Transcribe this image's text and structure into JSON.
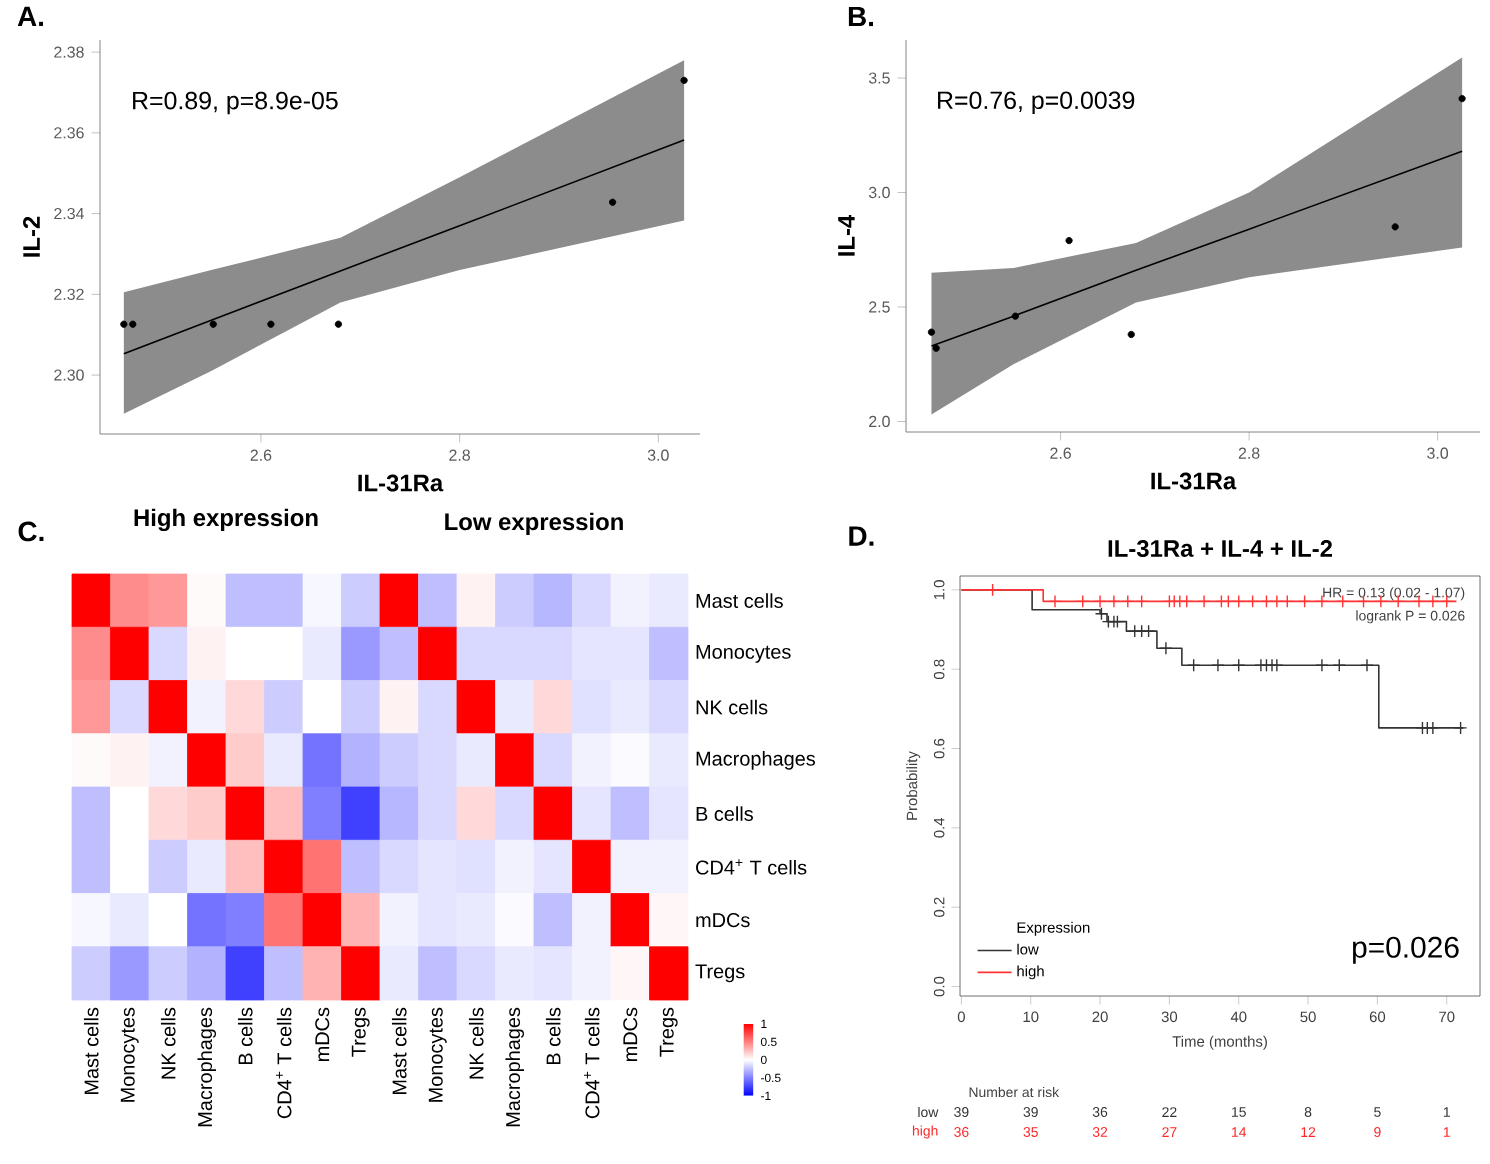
{
  "chart_data": [
    {
      "type": "scatter",
      "annotations": [
        "A.",
        "R=0.89, p=8.9e-05"
      ],
      "xlabel": "IL-31Ra",
      "ylabel": "IL-2",
      "xlim": [
        2.438,
        3.042
      ],
      "ylim": [
        2.2854,
        2.383
      ],
      "xticks": [
        2.6,
        2.8,
        {
          "value": 3.0,
          "label": "3.0"
        }
      ],
      "yticks": [
        {
          "value": 2.3,
          "label": "2.30"
        },
        {
          "value": 2.32,
          "label": "2.32"
        },
        {
          "value": 2.34,
          "label": "2.34"
        },
        {
          "value": 2.36,
          "label": "2.36"
        },
        {
          "value": 2.38,
          "label": "2.38"
        }
      ],
      "series": [
        {
          "type": "line",
          "color": "#000000",
          "x": [
            2.462,
            2.55,
            2.68,
            2.8,
            3.026
          ],
          "values": [
            2.3053,
            2.3136,
            2.3258,
            2.337,
            2.3582
          ],
          "lower": [
            2.2904,
            2.301,
            2.318,
            2.326,
            2.3383
          ],
          "upper": [
            2.3205,
            2.326,
            2.334,
            2.349,
            2.378
          ]
        },
        {
          "type": "scatter",
          "marker": "circle",
          "color": "#000000",
          "x": [
            2.462,
            2.471,
            2.552,
            2.61,
            2.678,
            2.954,
            3.026
          ],
          "values": [
            2.3126,
            2.3126,
            2.3126,
            2.3126,
            2.3126,
            2.3428,
            2.373
          ]
        }
      ]
    },
    {
      "type": "scatter",
      "annotations": [
        "B.",
        "R=0.76, p=0.0039"
      ],
      "xlabel": "IL-31Ra",
      "ylabel": "IL-4",
      "xlim": [
        2.436,
        3.045
      ],
      "ylim": [
        1.954,
        3.666
      ],
      "xticks": [
        2.6,
        2.8,
        {
          "value": 3.0,
          "label": "3.0"
        }
      ],
      "yticks": [
        {
          "value": 2.0,
          "label": "2.0"
        },
        2.5,
        {
          "value": 3.0,
          "label": "3.0"
        },
        3.5
      ],
      "series": [
        {
          "type": "line",
          "color": "#000000",
          "x": [
            2.463,
            2.55,
            2.68,
            2.8,
            3.026
          ],
          "values": [
            2.33,
            2.46,
            2.66,
            2.84,
            3.18
          ],
          "lower": [
            2.03,
            2.25,
            2.52,
            2.63,
            2.76
          ],
          "upper": [
            2.65,
            2.67,
            2.78,
            3.0,
            3.59
          ]
        },
        {
          "type": "scatter",
          "marker": "circle",
          "color": "#000000",
          "x": [
            2.463,
            2.468,
            2.552,
            2.609,
            2.675,
            2.955,
            3.026
          ],
          "values": [
            2.39,
            2.32,
            2.46,
            2.79,
            2.38,
            2.85,
            3.41
          ]
        }
      ]
    },
    {
      "type": "heatmap",
      "title": "High expression",
      "subtitle": "Low expression",
      "annotations": [
        "C."
      ],
      "clim": [
        -1,
        1
      ],
      "cticks": [
        1,
        0.5,
        0,
        -0.5,
        -1
      ],
      "categories": [
        "Mast cells",
        "Monocytes",
        "NK cells",
        "Macrophages",
        "B cells",
        "CD4$^{+}$ T cells",
        "mDCs",
        "Tregs",
        "Mast cells",
        "Monocytes",
        "NK cells",
        "Macrophages",
        "B cells",
        "CD4$^{+}$ T cells",
        "mDCs",
        "Tregs"
      ],
      "y_categories": [
        "Mast cells",
        "Monocytes",
        "NK cells",
        "Macrophages",
        "B cells",
        "CD4$^{+}$ T cells",
        "mDCs",
        "Tregs"
      ],
      "cells": [
        [
          1,
          0.45,
          0.4,
          0.02,
          -0.25,
          -0.25,
          -0.03,
          -0.2,
          1,
          -0.25,
          0.05,
          -0.2,
          -0.28,
          -0.15,
          -0.05,
          -0.08
        ],
        [
          0.45,
          1,
          -0.15,
          0.05,
          0,
          0,
          -0.08,
          -0.4,
          -0.25,
          1,
          -0.15,
          -0.15,
          -0.15,
          -0.1,
          -0.1,
          -0.25
        ],
        [
          0.4,
          -0.15,
          1,
          -0.05,
          0.15,
          -0.2,
          0,
          -0.2,
          0.05,
          -0.15,
          1,
          -0.08,
          0.15,
          -0.12,
          -0.08,
          -0.15
        ],
        [
          0.02,
          0.05,
          -0.05,
          1,
          0.2,
          -0.08,
          -0.55,
          -0.3,
          -0.2,
          -0.15,
          -0.08,
          1,
          -0.15,
          -0.05,
          -0.02,
          -0.08
        ],
        [
          -0.25,
          0,
          0.15,
          0.2,
          1,
          0.25,
          -0.5,
          -0.75,
          -0.28,
          -0.15,
          0.15,
          -0.15,
          1,
          -0.1,
          -0.25,
          -0.1
        ],
        [
          -0.25,
          0,
          -0.2,
          -0.08,
          0.25,
          1,
          0.55,
          -0.25,
          -0.15,
          -0.1,
          -0.12,
          -0.05,
          -0.1,
          1,
          -0.05,
          -0.05
        ],
        [
          -0.03,
          -0.08,
          0,
          -0.55,
          -0.5,
          0.55,
          1,
          0.3,
          -0.05,
          -0.1,
          -0.08,
          -0.02,
          -0.25,
          -0.05,
          1,
          0.03
        ],
        [
          -0.2,
          -0.4,
          -0.2,
          -0.3,
          -0.75,
          -0.25,
          0.3,
          1,
          -0.08,
          -0.25,
          -0.15,
          -0.08,
          -0.1,
          -0.05,
          0.03,
          1
        ]
      ]
    },
    {
      "type": "step",
      "title": "IL-31Ra + IL-4 + IL-2",
      "xlabel": "Time (months)",
      "ylabel": "Probability",
      "legend_title": "Expression",
      "legend": "bottom left",
      "xlim": [
        -0.2,
        74.8
      ],
      "ylim": [
        -0.024,
        1.035
      ],
      "xticks": [
        0,
        10,
        20,
        30,
        40,
        50,
        60,
        70
      ],
      "yticks": [
        {
          "value": 0,
          "label": "0.0"
        },
        0.2,
        0.4,
        0.6,
        0.8,
        {
          "value": 1,
          "label": "1.0"
        }
      ],
      "annotations": [
        "D.",
        "HR = 0.13 (0.02 - 1.07)",
        "logrank P = 0.026",
        "p=0.026",
        "Number at risk",
        "low",
        "39",
        "39",
        "36",
        "22",
        "15",
        "8",
        "5",
        "1",
        "high",
        "36",
        "35",
        "32",
        "27",
        "14",
        "12",
        "9",
        "1"
      ],
      "series": [
        {
          "name": "low",
          "color": "#333333",
          "x": [
            0,
            10.2,
            20,
            21,
            23.8,
            28.2,
            31.8,
            60.2,
            72.4
          ],
          "values": [
            1,
            0.95,
            0.94,
            0.92,
            0.896,
            0.853,
            0.81,
            0.652,
            0.652
          ]
        },
        {
          "name": "high",
          "color": "#ff3333",
          "x": [
            0,
            11.8,
            71.4
          ],
          "values": [
            1,
            0.971,
            0.971
          ]
        },
        {
          "type": "scatter",
          "marker": "cross",
          "color": "#333333",
          "x": [
            20.2,
            21.2,
            22,
            22.5,
            25,
            26,
            27,
            29.5,
            33.5,
            37,
            40,
            43.2,
            44,
            44.8,
            45.5,
            52,
            54.5,
            58.5,
            66.5,
            67.2,
            68,
            72
          ],
          "values": [
            0.94,
            0.92,
            0.92,
            0.92,
            0.896,
            0.896,
            0.896,
            0.853,
            0.81,
            0.81,
            0.81,
            0.81,
            0.81,
            0.81,
            0.81,
            0.81,
            0.81,
            0.81,
            0.652,
            0.652,
            0.652,
            0.652
          ]
        },
        {
          "type": "scatter",
          "marker": "cross",
          "color": "#ff3333",
          "x": [
            4.5,
            13.5,
            17.5,
            20,
            22,
            24,
            26,
            30,
            30.7,
            31.5,
            32.5,
            35,
            37.5,
            38.5,
            40,
            42,
            44,
            45.5,
            47,
            49.5,
            52,
            55,
            58,
            60.5,
            63,
            66,
            68,
            70
          ],
          "values": [
            1,
            0.971,
            0.971,
            0.971,
            0.971,
            0.971,
            0.971,
            0.971,
            0.971,
            0.971,
            0.971,
            0.971,
            0.971,
            0.971,
            0.971,
            0.971,
            0.971,
            0.971,
            0.971,
            0.971,
            0.971,
            0.971,
            0.971,
            0.971,
            0.971,
            0.971,
            0.971,
            0.971
          ]
        }
      ]
    }
  ]
}
